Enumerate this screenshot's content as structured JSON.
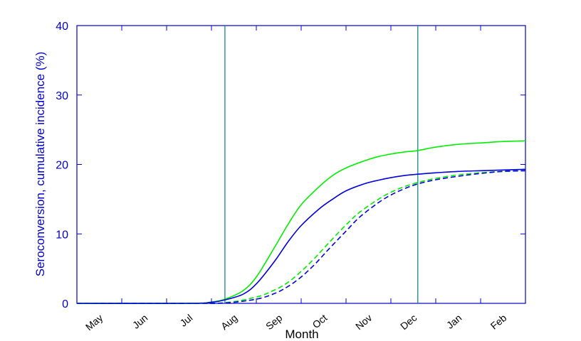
{
  "chart_data": {
    "type": "line",
    "xlabel": "Month",
    "ylabel": "Seroconversion, cumulative incidence (%)",
    "ylim": [
      0,
      40
    ],
    "xlim": [
      0,
      10
    ],
    "y_ticks": [
      0,
      10,
      20,
      30,
      40
    ],
    "x_ticks": [
      {
        "label": "May",
        "at": 0.5
      },
      {
        "label": "Jun",
        "at": 1.5
      },
      {
        "label": "Jul",
        "at": 2.5
      },
      {
        "label": "Aug",
        "at": 3.5
      },
      {
        "label": "Sep",
        "at": 4.5
      },
      {
        "label": "Oct",
        "at": 5.5
      },
      {
        "label": "Nov",
        "at": 6.5
      },
      {
        "label": "Dec",
        "at": 7.5
      },
      {
        "label": "Jan",
        "at": 8.5
      },
      {
        "label": "Feb",
        "at": 9.5
      }
    ],
    "vertical_lines": [
      3.3,
      7.6
    ],
    "grid": false,
    "colors": {
      "axis": "#0000cc",
      "vline": "#008080",
      "blue": "#0000dd",
      "green": "#00ee00"
    },
    "series": [
      {
        "color": "#00ee00",
        "dash": "solid",
        "x": [
          0,
          2.5,
          3.0,
          3.3,
          3.7,
          4.0,
          4.4,
          4.7,
          5.0,
          5.4,
          5.7,
          6.0,
          6.4,
          6.7,
          7.0,
          7.3,
          7.6,
          8.0,
          8.5,
          9.0,
          9.5,
          10.0
        ],
        "y": [
          0,
          0,
          0.2,
          0.6,
          1.8,
          3.8,
          8.0,
          11.3,
          14.2,
          16.8,
          18.4,
          19.5,
          20.5,
          21.1,
          21.5,
          21.8,
          22.0,
          22.5,
          22.9,
          23.1,
          23.3,
          23.4
        ]
      },
      {
        "color": "#0000dd",
        "dash": "solid",
        "x": [
          0,
          2.5,
          3.0,
          3.3,
          3.7,
          4.0,
          4.4,
          4.7,
          5.0,
          5.4,
          5.7,
          6.0,
          6.4,
          6.7,
          7.0,
          7.3,
          7.6,
          8.0,
          8.5,
          9.0,
          9.5,
          10.0
        ],
        "y": [
          0,
          0,
          0.15,
          0.5,
          1.3,
          2.8,
          6.0,
          8.8,
          11.2,
          13.6,
          15.0,
          16.2,
          17.2,
          17.7,
          18.1,
          18.4,
          18.6,
          18.8,
          19.0,
          19.1,
          19.2,
          19.3
        ]
      },
      {
        "color": "#00ee00",
        "dash": "dashed",
        "x": [
          0,
          2.5,
          3.3,
          4.0,
          4.4,
          4.7,
          5.0,
          5.3,
          5.6,
          6.0,
          6.3,
          6.7,
          7.0,
          7.3,
          7.6,
          8.0,
          8.5,
          9.0,
          9.5,
          10.0
        ],
        "y": [
          0,
          0,
          0.1,
          0.9,
          1.9,
          3.0,
          4.6,
          6.5,
          8.6,
          11.3,
          13.1,
          14.9,
          16.0,
          16.8,
          17.4,
          18.0,
          18.5,
          18.8,
          19.0,
          19.1
        ]
      },
      {
        "color": "#0000dd",
        "dash": "dashed",
        "x": [
          0,
          2.5,
          3.3,
          4.0,
          4.4,
          4.7,
          5.0,
          5.3,
          5.6,
          6.0,
          6.3,
          6.7,
          7.0,
          7.3,
          7.6,
          8.0,
          8.5,
          9.0,
          9.5,
          10.0
        ],
        "y": [
          0,
          0,
          0.05,
          0.6,
          1.4,
          2.4,
          3.8,
          5.6,
          7.7,
          10.4,
          12.4,
          14.4,
          15.6,
          16.5,
          17.2,
          17.8,
          18.3,
          18.7,
          19.0,
          19.1
        ]
      }
    ]
  }
}
